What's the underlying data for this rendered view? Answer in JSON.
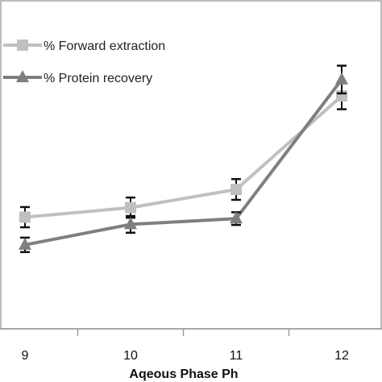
{
  "chart_data": {
    "type": "line",
    "xlabel": "Aqeous Phase Ph",
    "x": [
      9,
      10,
      11,
      12
    ],
    "x_tick_labels": [
      "9",
      "10",
      "11",
      "12"
    ],
    "y_visible_range": [
      0,
      100
    ],
    "grid": false,
    "legend_position": "top-left",
    "series": [
      {
        "name": "% Forward extraction",
        "marker": "square",
        "color": "#c0c0c0",
        "values": [
          38.7,
          42.0,
          48.3,
          80.7
        ],
        "error": [
          3.5,
          3.5,
          3.6,
          4.6
        ]
      },
      {
        "name": "% Protein recovery",
        "marker": "triangle",
        "color": "#7f7f7f",
        "values": [
          29.1,
          36.2,
          38.2,
          86.4
        ],
        "error": [
          2.5,
          2.9,
          2.2,
          4.8
        ]
      }
    ]
  }
}
